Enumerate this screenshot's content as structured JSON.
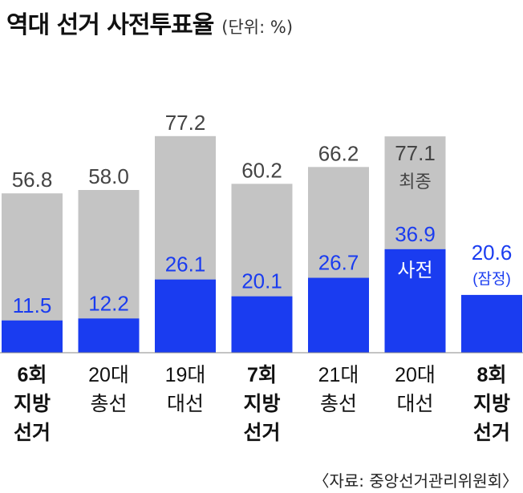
{
  "header": {
    "title": "역대 선거 사전투표율",
    "unit": "(단위: %)"
  },
  "source": "〈자료: 중앙선거관리위원회〉",
  "colors": {
    "final_bar": "#c4c4c4",
    "early_bar": "#1a3cf0",
    "final_text": "#444444",
    "early_text": "#1a3cf0",
    "white_text": "#ffffff"
  },
  "chart_data": {
    "type": "bar",
    "title": "역대 선거 사전투표율",
    "unit": "%",
    "categories": [
      [
        "6회",
        "지방",
        "선거"
      ],
      [
        "20대",
        "총선"
      ],
      [
        "19대",
        "대선"
      ],
      [
        "7회",
        "지방",
        "선거"
      ],
      [
        "21대",
        "총선"
      ],
      [
        "20대",
        "대선"
      ],
      [
        "8회",
        "지방",
        "선거"
      ]
    ],
    "category_bold": [
      true,
      false,
      false,
      true,
      false,
      false,
      true
    ],
    "series": [
      {
        "name": "최종",
        "values": [
          56.8,
          58.0,
          77.2,
          60.2,
          66.2,
          77.1,
          null
        ],
        "labels": [
          "56.8",
          "58.0",
          "77.2",
          "60.2",
          "66.2",
          "77.1",
          ""
        ]
      },
      {
        "name": "사전",
        "values": [
          11.5,
          12.2,
          26.1,
          20.1,
          26.7,
          36.9,
          20.6
        ],
        "labels": [
          "11.5",
          "12.2",
          "26.1",
          "20.1",
          "26.7",
          "36.9",
          "20.6"
        ]
      }
    ],
    "annotations": {
      "final_tag": "최종",
      "early_tag": "사전",
      "provisional": "(잠정)"
    },
    "ylim": [
      0,
      85
    ],
    "grid": false,
    "legend": "inline-labels"
  }
}
